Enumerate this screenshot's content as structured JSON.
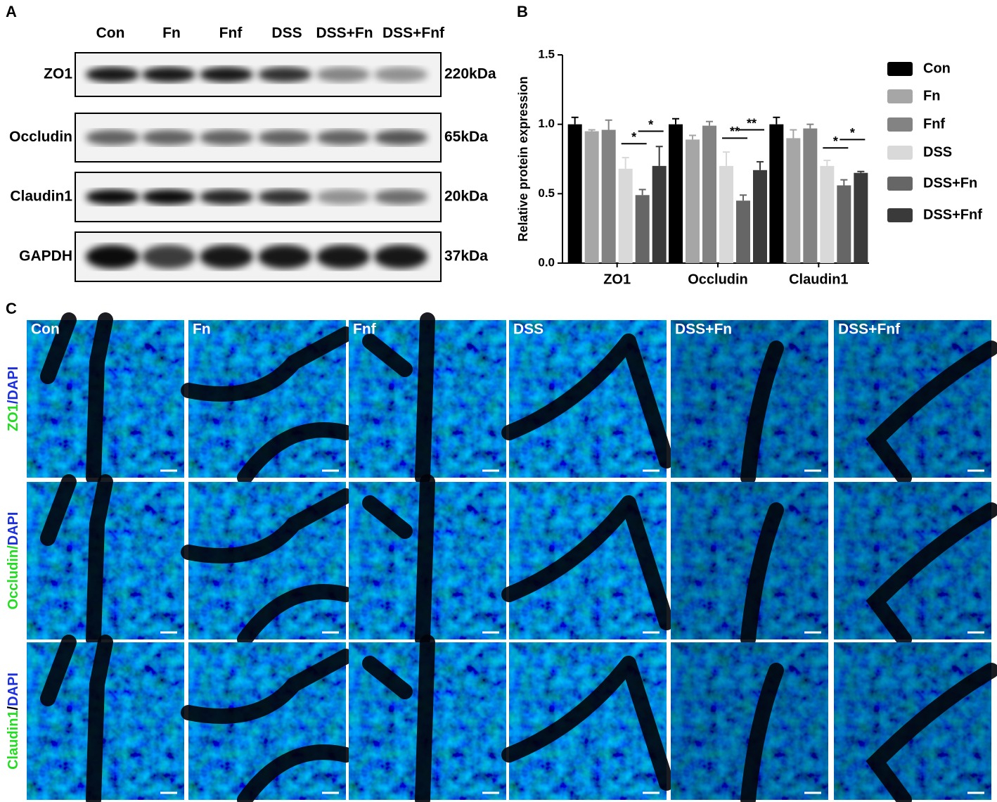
{
  "panel_labels": [
    "A",
    "B",
    "C"
  ],
  "blot": {
    "lanes": [
      "Con",
      "Fn",
      "Fnf",
      "DSS",
      "DSS+Fn",
      "DSS+Fnf"
    ],
    "rows": [
      {
        "protein": "ZO1",
        "size": "220kDa"
      },
      {
        "protein": "Occludin",
        "size": "65kDa"
      },
      {
        "protein": "Claudin1",
        "size": "20kDa"
      },
      {
        "protein": "GAPDH",
        "size": "37kDa"
      }
    ]
  },
  "chart_data": {
    "type": "bar",
    "y_label": "Relative protein expression",
    "categories": [
      "ZO1",
      "Occludin",
      "Claudin1"
    ],
    "series": [
      {
        "name": "Con",
        "color": "#000000",
        "values": [
          1.0,
          1.0,
          1.0
        ],
        "errors": [
          0.05,
          0.04,
          0.05
        ]
      },
      {
        "name": "Fn",
        "color": "#a6a6a6",
        "values": [
          0.95,
          0.89,
          0.9
        ],
        "errors": [
          0.01,
          0.03,
          0.06
        ]
      },
      {
        "name": "Fnf",
        "color": "#838383",
        "values": [
          0.96,
          0.99,
          0.97
        ],
        "errors": [
          0.07,
          0.03,
          0.03
        ]
      },
      {
        "name": "DSS",
        "color": "#d9d9d9",
        "values": [
          0.68,
          0.7,
          0.7
        ],
        "errors": [
          0.08,
          0.1,
          0.04
        ]
      },
      {
        "name": "DSS+Fn",
        "color": "#666666",
        "values": [
          0.49,
          0.45,
          0.56
        ],
        "errors": [
          0.04,
          0.04,
          0.04
        ]
      },
      {
        "name": "DSS+Fnf",
        "color": "#3a3a3a",
        "values": [
          0.7,
          0.67,
          0.65
        ],
        "errors": [
          0.14,
          0.06,
          0.01
        ]
      }
    ],
    "ylim": [
      0,
      1.5
    ],
    "yticks": [
      {
        "value": 0,
        "label": "0.0"
      },
      0.5,
      {
        "value": 1,
        "label": "1.0"
      },
      1.5
    ],
    "annotations": [
      "*",
      "*",
      "**",
      "**",
      "*",
      "*"
    ]
  },
  "microscopy": {
    "columns": [
      "Con",
      "Fn",
      "Fnf",
      "DSS",
      "DSS+Fn",
      "DSS+Fnf"
    ],
    "rows": [
      {
        "stain": "ZO1",
        "separator": "/",
        "counterstain": "DAPI"
      },
      {
        "stain": "Occludin/",
        "counterstain": "DAPI"
      },
      {
        "stain": "Claudin1",
        "separator": "/",
        "counterstain": "DAPI"
      }
    ]
  }
}
